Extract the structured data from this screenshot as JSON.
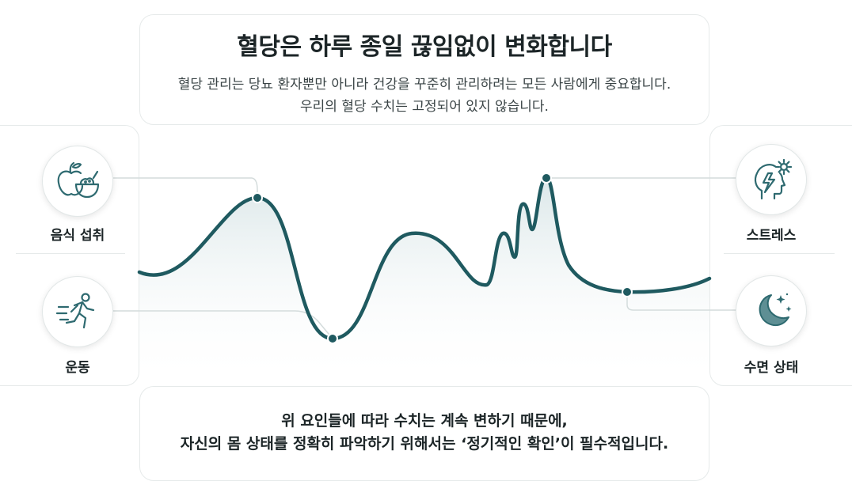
{
  "header": {
    "title": "혈당은 하루 종일 끊임없이 변화합니다",
    "subtitle_line1": "혈당 관리는 당뇨 환자뿐만 아니라 건강을 꾸준히 관리하려는 모든 사람에게 중요합니다.",
    "subtitle_line2": "우리의 혈당 수치는 고정되어 있지 않습니다."
  },
  "factors": {
    "food": {
      "label": "음식 섭취",
      "icon": "apple-bowl-icon"
    },
    "exercise": {
      "label": "운동",
      "icon": "running-person-icon"
    },
    "stress": {
      "label": "스트레스",
      "icon": "head-lightning-gear-icon"
    },
    "sleep": {
      "label": "수면 상태",
      "icon": "moon-stars-icon"
    }
  },
  "footer": {
    "line1": "위 요인들에 따라 수치는 계속 변하기 때문에,",
    "line2": "자신의 몸 상태를 정확히 파악하기 위해서는 ‘정기적인 확인’이 필수적입니다."
  },
  "colors": {
    "curve": "#1f5a60",
    "fill_top": "#cfdfe1",
    "icon_stroke": "#2e6a70",
    "border": "#e6eaea"
  }
}
